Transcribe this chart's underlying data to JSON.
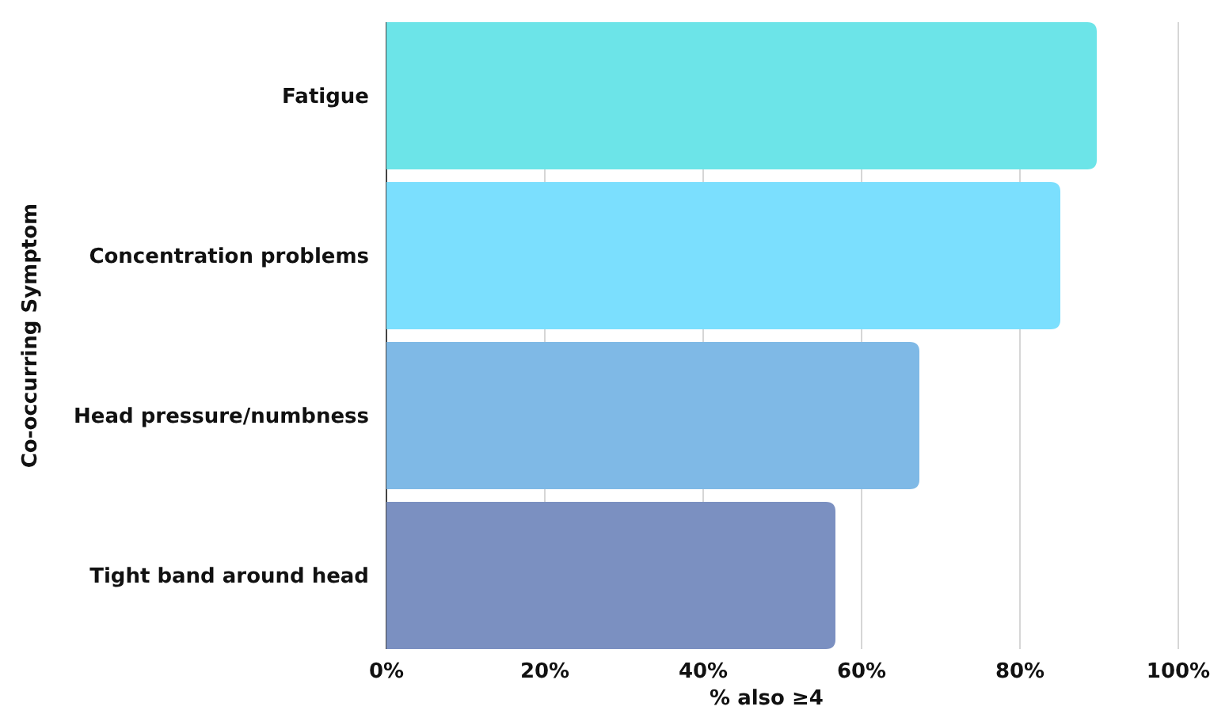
{
  "chart_data": {
    "type": "bar",
    "orientation": "horizontal",
    "xlabel": "% also ≥4",
    "ylabel": "Co-occurring Symptom",
    "categories": [
      "Fatigue",
      "Concentration problems",
      "Head pressure/numbness",
      "Tight band around head"
    ],
    "values": [
      89.7,
      85.1,
      67.3,
      56.7
    ],
    "colors": [
      "#6ce4e8",
      "#7bdffe",
      "#7fb9e6",
      "#7b90c1"
    ],
    "xlim": [
      0,
      100
    ],
    "xticks": [
      {
        "value": 0,
        "label": "0%"
      },
      {
        "value": 20,
        "label": "20%"
      },
      {
        "value": 40,
        "label": "40%"
      },
      {
        "value": 60,
        "label": "60%"
      },
      {
        "value": 80,
        "label": "80%"
      },
      {
        "value": 100,
        "label": "100%"
      }
    ],
    "grid": "x"
  }
}
